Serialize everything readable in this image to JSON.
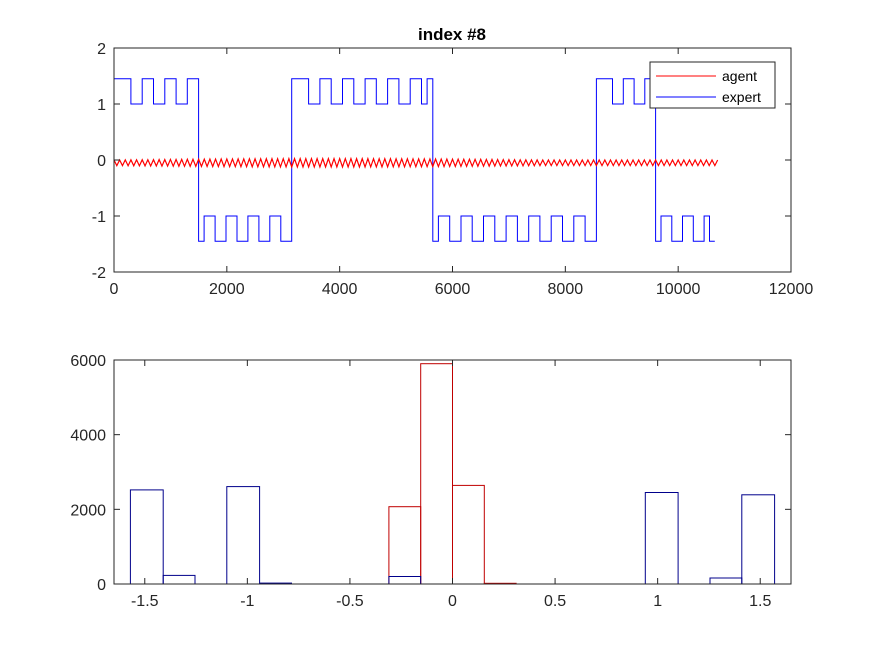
{
  "chart_data": [
    {
      "type": "line",
      "title": "index #8",
      "xlim": [
        0,
        12000
      ],
      "ylim": [
        -2,
        2
      ],
      "xticks": [
        0,
        2000,
        4000,
        6000,
        8000,
        10000,
        12000
      ],
      "yticks": [
        -2,
        -1,
        0,
        1,
        2
      ],
      "xtick_labels": [
        "0",
        "2000",
        "4000",
        "6000",
        "8000",
        "10000",
        "12000"
      ],
      "ytick_labels": [
        "-2",
        "-1",
        "0",
        "1",
        "2"
      ],
      "legend_position": "top-right",
      "series": [
        {
          "name": "agent",
          "color": "#ff0000",
          "description_values": {
            "x_range": [
              0,
              10700
            ],
            "oscillation_center": -0.05,
            "amplitude_start": 0.1,
            "amplitude_max": 0.15,
            "period": 100
          }
        },
        {
          "name": "expert",
          "color": "#0000ff",
          "segments": [
            {
              "x0": 0,
              "x1": 1500,
              "base": 1.0,
              "high": 1.45
            },
            {
              "x0": 1500,
              "x1": 3150,
              "base": -1.45,
              "high": -1.0
            },
            {
              "x0": 3150,
              "x1": 5650,
              "base": 1.0,
              "high": 1.45
            },
            {
              "x0": 5650,
              "x1": 8550,
              "base": -1.45,
              "high": -1.0
            },
            {
              "x0": 8550,
              "x1": 9600,
              "base": 1.0,
              "high": 1.45
            },
            {
              "x0": 9600,
              "x1": 10650,
              "base": -1.45,
              "high": -1.0
            }
          ]
        }
      ]
    },
    {
      "type": "bar",
      "xlim": [
        -1.65,
        1.65
      ],
      "ylim": [
        0,
        6000
      ],
      "xticks": [
        -1.5,
        -1,
        -0.5,
        0,
        0.5,
        1,
        1.5
      ],
      "yticks": [
        0,
        2000,
        4000,
        6000
      ],
      "xtick_labels": [
        "-1.5",
        "-1",
        "-0.5",
        "0",
        "0.5",
        "1",
        "1.5"
      ],
      "ytick_labels": [
        "0",
        "2000",
        "4000",
        "6000"
      ],
      "series": [
        {
          "name": "agent",
          "color": "#c00000",
          "bins": [
            {
              "left": -0.31,
              "right": -0.155,
              "value": 2070
            },
            {
              "left": -0.155,
              "right": 0.0,
              "value": 5900
            },
            {
              "left": 0.0,
              "right": 0.155,
              "value": 2640
            },
            {
              "left": 0.155,
              "right": 0.31,
              "value": 20
            }
          ]
        },
        {
          "name": "expert",
          "color": "#00008b",
          "bins": [
            {
              "left": -1.57,
              "right": -1.41,
              "value": 2520
            },
            {
              "left": -1.41,
              "right": -1.255,
              "value": 230
            },
            {
              "left": -1.1,
              "right": -0.94,
              "value": 2610
            },
            {
              "left": -0.94,
              "right": -0.785,
              "value": 25
            },
            {
              "left": -0.31,
              "right": -0.155,
              "value": 200
            },
            {
              "left": 0.94,
              "right": 1.1,
              "value": 2450
            },
            {
              "left": 1.255,
              "right": 1.41,
              "value": 160
            },
            {
              "left": 1.41,
              "right": 1.57,
              "value": 2390
            }
          ]
        }
      ]
    }
  ]
}
